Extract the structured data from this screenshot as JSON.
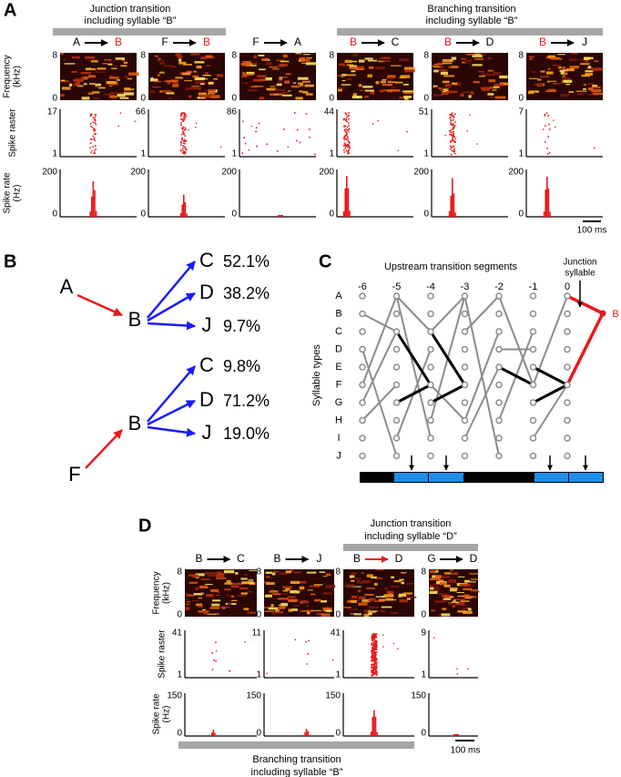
{
  "panel_a": {
    "label": "A",
    "groups": [
      {
        "lines": [
          "Junction transition",
          "including syllable “B”"
        ]
      },
      {
        "lines": [
          "Branching transition",
          "including syllable “B”"
        ]
      }
    ],
    "frequency_label": [
      "Frequency",
      "(kHz)"
    ],
    "raster_label": "Spike raster",
    "rate_label": [
      "Spike rate",
      "(Hz)"
    ],
    "freq_ticks": [
      8,
      0
    ],
    "raster_min": 1,
    "rate_ticks": [
      200,
      0
    ],
    "columns": [
      {
        "from": "A",
        "to": "B",
        "from_color": "#000000",
        "to_color": "#e8191b",
        "arrow_color": "#000000",
        "raster_max": 17
      },
      {
        "from": "F",
        "to": "B",
        "from_color": "#000000",
        "to_color": "#e8191b",
        "arrow_color": "#000000",
        "raster_max": 66
      },
      {
        "from": "F",
        "to": "A",
        "from_color": "#000000",
        "to_color": "#000000",
        "arrow_color": "#000000",
        "raster_max": 86
      },
      {
        "from": "B",
        "to": "C",
        "from_color": "#e8191b",
        "to_color": "#000000",
        "arrow_color": "#000000",
        "raster_max": 44
      },
      {
        "from": "B",
        "to": "D",
        "from_color": "#e8191b",
        "to_color": "#000000",
        "arrow_color": "#000000",
        "raster_max": 51
      },
      {
        "from": "B",
        "to": "J",
        "from_color": "#e8191b",
        "to_color": "#000000",
        "arrow_color": "#000000",
        "raster_max": 7
      }
    ],
    "scale": "100 ms"
  },
  "panel_b": {
    "label": "B",
    "flows": [
      {
        "source": "A",
        "hub": "B",
        "targets": [
          {
            "name": "C",
            "percent": "52.1%"
          },
          {
            "name": "D",
            "percent": "38.2%"
          },
          {
            "name": "J",
            "percent": "9.7%"
          }
        ]
      },
      {
        "source": "F",
        "hub": "B",
        "targets": [
          {
            "name": "C",
            "percent": "9.8%"
          },
          {
            "name": "D",
            "percent": "71.2%"
          },
          {
            "name": "J",
            "percent": "19.0%"
          }
        ]
      }
    ]
  },
  "panel_c": {
    "label": "C",
    "title": "Upstream transition segments",
    "columns": [
      "-6",
      "-5",
      "-4",
      "-3",
      "-2",
      "-1",
      "0"
    ],
    "rows": [
      "A",
      "B",
      "C",
      "D",
      "E",
      "F",
      "G",
      "H",
      "I",
      "J"
    ],
    "y_label": "Syllable types",
    "junction_label": [
      "Junction",
      "syllable"
    ],
    "junction_node": "B"
  },
  "panel_d": {
    "label": "D",
    "top_group": [
      "Junction transition",
      "including syllable “D”"
    ],
    "bottom_group": [
      "Branching transition",
      "including syllable “B”"
    ],
    "frequency_label": [
      "Frequency",
      "(kHz)"
    ],
    "raster_label": "Spike raster",
    "rate_label": [
      "Spike rate",
      "(Hz)"
    ],
    "freq_ticks": [
      8,
      0
    ],
    "raster_min": 1,
    "rate_ticks": [
      150,
      0
    ],
    "columns": [
      {
        "from": "B",
        "to": "C",
        "from_color": "#000000",
        "to_color": "#000000",
        "arrow_color": "#000000",
        "raster_max": 41
      },
      {
        "from": "B",
        "to": "J",
        "from_color": "#000000",
        "to_color": "#000000",
        "arrow_color": "#000000",
        "raster_max": 11
      },
      {
        "from": "B",
        "to": "D",
        "from_color": "#000000",
        "to_color": "#000000",
        "arrow_color": "#e8191b",
        "raster_max": 41
      },
      {
        "from": "G",
        "to": "D",
        "from_color": "#000000",
        "to_color": "#000000",
        "arrow_color": "#000000",
        "raster_max": 9
      }
    ],
    "scale": "100 ms"
  }
}
